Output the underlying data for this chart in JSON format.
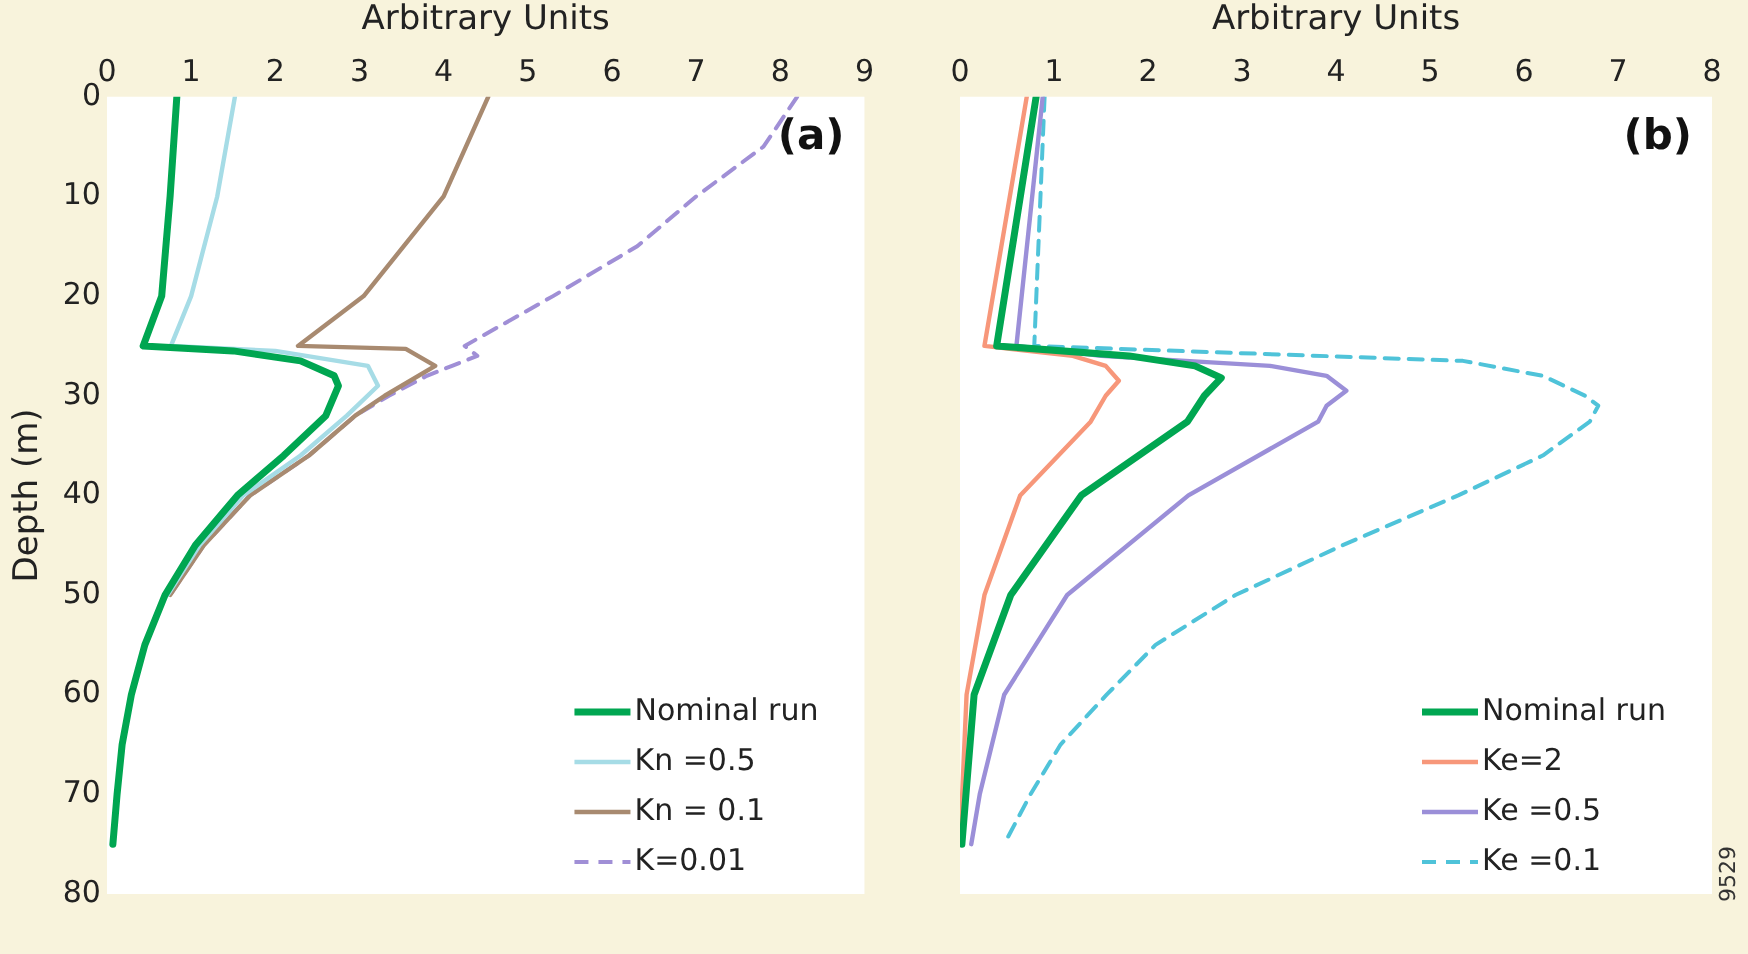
{
  "chart_data": [
    {
      "type": "line",
      "xlabel": "Arbitrary Units",
      "ylabel": "Depth (m)",
      "annotations": [
        "(a)"
      ],
      "xlim": [
        0,
        9
      ],
      "xticks": [
        0,
        1,
        2,
        3,
        4,
        5,
        6,
        7,
        8,
        9
      ],
      "ylim": [
        80,
        0
      ],
      "yticks": [
        0,
        10,
        20,
        30,
        40,
        50,
        60,
        70,
        80
      ],
      "grid": false,
      "legend": "bottom right",
      "marker": "none",
      "series": [
        {
          "name": "Nominal run",
          "color": "#00a651",
          "line_style": "solid",
          "x": [
            0.83,
            0.75,
            0.65,
            0.43,
            1.5,
            2.3,
            2.7,
            2.75,
            2.6,
            2.1,
            1.55,
            1.05,
            0.69,
            0.45,
            0.29,
            0.18,
            0.12,
            0.07
          ],
          "values": [
            0,
            10,
            20,
            25,
            25.5,
            26.5,
            28,
            29,
            32,
            36,
            40,
            45,
            50,
            55,
            60,
            65,
            70,
            75
          ]
        },
        {
          "name": "Kn =0.5",
          "color": "#a6dce6",
          "line_style": "solid",
          "x": [
            1.52,
            1.31,
            1.0,
            0.76,
            2.0,
            3.1,
            3.22,
            2.85,
            2.3,
            1.62,
            1.1,
            0.72
          ],
          "values": [
            0,
            10,
            20,
            25,
            25.5,
            27,
            29,
            32,
            36,
            40,
            45,
            50
          ]
        },
        {
          "name": "Kn = 0.1",
          "color": "#a88a70",
          "line_style": "solid",
          "x": [
            4.53,
            4.0,
            3.05,
            2.27,
            3.55,
            3.9,
            3.3,
            2.95,
            2.4,
            1.7,
            1.15,
            0.75
          ],
          "values": [
            0,
            10,
            20,
            25,
            25.3,
            27,
            30,
            32,
            36,
            40,
            45,
            50
          ]
        },
        {
          "name": "K=0.01",
          "color": "#a08fd6",
          "line_style": "dashed",
          "x": [
            8.2,
            7.8,
            7.0,
            6.3,
            5.3,
            4.25,
            4.4,
            4.1,
            3.8,
            3.35,
            2.95,
            2.4,
            1.7,
            1.15,
            0.75
          ],
          "values": [
            0,
            5,
            10,
            15,
            20,
            25,
            26,
            27,
            28,
            30,
            32,
            36,
            40,
            45,
            50
          ]
        }
      ]
    },
    {
      "type": "line",
      "xlabel": "Arbitrary Units",
      "annotations": [
        "(b)",
        "9529"
      ],
      "xlim": [
        0,
        8
      ],
      "xticks": [
        0,
        1,
        2,
        3,
        4,
        5,
        6,
        7,
        8
      ],
      "ylim": [
        80,
        0
      ],
      "yticks": [
        0,
        10,
        20,
        30,
        40,
        50,
        60,
        70,
        80
      ],
      "tick_labels": "x",
      "grid": false,
      "legend": "bottom right",
      "marker": "none",
      "series": [
        {
          "name": "Nominal run",
          "color": "#00a651",
          "line_style": "solid",
          "x": [
            0.81,
            0.39,
            1.8,
            2.5,
            2.78,
            2.6,
            2.42,
            1.29,
            0.54,
            0.15,
            0.02
          ],
          "values": [
            0,
            25,
            26,
            27,
            28.2,
            30,
            32.6,
            40,
            50,
            60,
            75
          ]
        },
        {
          "name": "Ke=2",
          "color": "#f7977a",
          "line_style": "solid",
          "x": [
            0.71,
            0.26,
            1.2,
            1.55,
            1.69,
            1.55,
            1.39,
            0.64,
            0.26,
            0.07,
            0.0
          ],
          "values": [
            0,
            25,
            26,
            27,
            28.5,
            30,
            32.6,
            40,
            50,
            60,
            75
          ]
        },
        {
          "name": "Ke =0.5",
          "color": "#9b8fd8",
          "line_style": "solid",
          "x": [
            0.88,
            0.6,
            1.5,
            3.3,
            3.9,
            4.11,
            3.9,
            3.81,
            2.43,
            1.14,
            0.47,
            0.21,
            0.12
          ],
          "values": [
            0,
            25,
            26,
            27,
            28,
            29.5,
            31,
            32.6,
            40,
            50,
            60,
            70,
            75
          ]
        },
        {
          "name": "Ke =0.1",
          "color": "#4fc3d9",
          "line_style": "dashed",
          "x": [
            0.9,
            0.79,
            5.35,
            6.2,
            6.65,
            6.79,
            6.7,
            6.2,
            5.3,
            4.07,
            2.93,
            2.08,
            1.56,
            1.07,
            0.75,
            0.47
          ],
          "values": [
            0,
            25,
            26.5,
            28,
            30,
            31,
            32.6,
            36,
            40,
            45,
            50,
            55,
            60,
            65,
            70,
            75
          ]
        }
      ]
    }
  ]
}
